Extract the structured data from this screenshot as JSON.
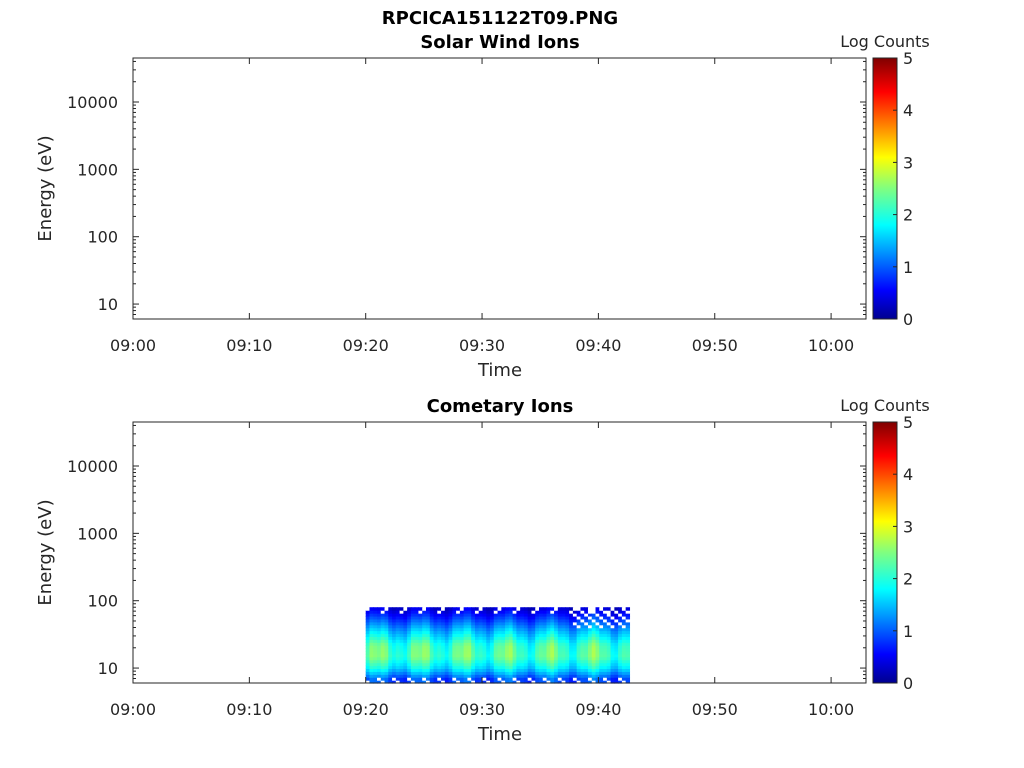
{
  "figure_title": "RPCICA151122T09.PNG",
  "colors": {
    "axis": "#262626",
    "colormap": [
      "#00008f",
      "#0000ff",
      "#0080ff",
      "#00ffff",
      "#80ff80",
      "#ffff00",
      "#ff8000",
      "#ff0000",
      "#800000"
    ]
  },
  "chart_data": [
    {
      "type": "heatmap",
      "title": "Solar Wind Ions",
      "xlabel": "Time",
      "ylabel": "Energy (eV)",
      "x_ticks": [
        "09:00",
        "09:10",
        "09:20",
        "09:30",
        "09:40",
        "09:50",
        "10:00"
      ],
      "xlim_minutes": [
        0,
        63
      ],
      "y_scale": "log",
      "y_ticks": [
        "10",
        "100",
        "1000",
        "10000"
      ],
      "ylim": [
        6,
        45000
      ],
      "colorbar": {
        "label": "Log Counts",
        "range": [
          0,
          5
        ],
        "ticks": [
          "0",
          "1",
          "2",
          "3",
          "4",
          "5"
        ]
      },
      "data": "none"
    },
    {
      "type": "heatmap",
      "title": "Cometary Ions",
      "xlabel": "Time",
      "ylabel": "Energy (eV)",
      "x_ticks": [
        "09:00",
        "09:10",
        "09:20",
        "09:30",
        "09:40",
        "09:50",
        "10:00"
      ],
      "xlim_minutes": [
        0,
        63
      ],
      "y_scale": "log",
      "y_ticks": [
        "10",
        "100",
        "1000",
        "10000"
      ],
      "ylim": [
        6,
        45000
      ],
      "colorbar": {
        "label": "Log Counts",
        "range": [
          0,
          5
        ],
        "ticks": [
          "0",
          "1",
          "2",
          "3",
          "4",
          "5"
        ]
      },
      "data": {
        "time_start": "09:20",
        "time_end": "09:42:40",
        "energy_min_eV": 6,
        "energy_max_eV": 80,
        "log_counts_by_energy": [
          {
            "energy_eV": 7,
            "log_counts": 1.0
          },
          {
            "energy_eV": 10,
            "log_counts": 1.8
          },
          {
            "energy_eV": 15,
            "log_counts": 2.3
          },
          {
            "energy_eV": 22,
            "log_counts": 2.2
          },
          {
            "energy_eV": 35,
            "log_counts": 1.6
          },
          {
            "energy_eV": 55,
            "log_counts": 0.9
          },
          {
            "energy_eV": 78,
            "log_counts": 0.4
          }
        ]
      }
    }
  ]
}
